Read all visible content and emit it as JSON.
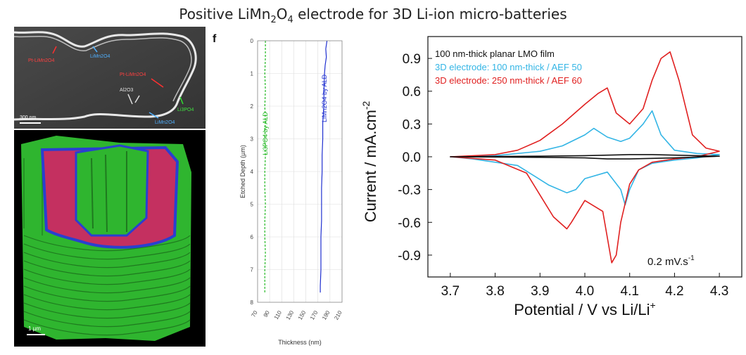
{
  "figure": {
    "title_main": "Positive LiMn",
    "title_sub1": "2",
    "title_mid": "O",
    "title_sub2": "4",
    "title_end": " electrode for 3D Li-ion micro-batteries"
  },
  "sem_image": {
    "labels": [
      "Pt-LiMn2O4",
      "LiMn2O4",
      "Pt-LiMn2O4",
      "Al2O3",
      "Li3PO4",
      "LiMn2O4"
    ],
    "scale_bar": "300 nm"
  },
  "model_image": {
    "scale_bar": "1 µm",
    "colors": {
      "outer": "#2fb52f",
      "inner": "#c43060",
      "edge": "#2a3fd0"
    }
  },
  "chart_data": [
    {
      "type": "line",
      "panel_label": "f",
      "xlabel": "Thickness (nm)",
      "ylabel": "Etched Depth (µm)",
      "xlim": [
        70,
        210
      ],
      "ylim": [
        8,
        0
      ],
      "x_ticks": [
        "70",
        "90",
        "110",
        "130",
        "150",
        "170",
        "190",
        "210"
      ],
      "y_ticks": [
        "0",
        "1",
        "2",
        "3",
        "4",
        "5",
        "6",
        "7",
        "8"
      ],
      "grid": true,
      "series": [
        {
          "name": "Li3PO4 by ALD",
          "color": "#22b822",
          "depth": [
            0,
            0.5,
            1,
            1.5,
            2,
            2.5,
            3,
            3.5,
            4,
            4.5,
            5,
            5.5,
            6,
            6.5,
            7,
            7.5,
            7.7
          ],
          "thickness": [
            83,
            83,
            82,
            83,
            82,
            83,
            82,
            83,
            82,
            82,
            83,
            82,
            82,
            83,
            82,
            82,
            82
          ]
        },
        {
          "name": "LiMn2O4 by ALD",
          "color": "#2030d0",
          "depth": [
            0,
            0.25,
            0.5,
            0.75,
            1,
            1.5,
            2,
            2.5,
            3,
            3.5,
            4,
            4.5,
            5,
            5.5,
            6,
            6.5,
            7,
            7.5,
            7.7
          ],
          "thickness": [
            185,
            183,
            184,
            182,
            181,
            180,
            180,
            178,
            178,
            177,
            177,
            176,
            176,
            176,
            175,
            175,
            175,
            174,
            174
          ]
        }
      ]
    },
    {
      "type": "line",
      "xlabel": "Potential / V vs Li/Li+",
      "ylabel": "Current / mA.cm-2",
      "xlim": [
        3.65,
        4.35
      ],
      "ylim": [
        -1.1,
        1.1
      ],
      "x_ticks": [
        "3.7",
        "3.8",
        "3.9",
        "4.0",
        "4.1",
        "4.2",
        "4.3"
      ],
      "y_ticks": [
        "0.9",
        "0.6",
        "0.3",
        "0.0",
        "-0.3",
        "-0.6",
        "-0.9"
      ],
      "annotation": "0.2 mV.s-1",
      "legend_position": "top-left",
      "series": [
        {
          "name": "100 nm-thick planar LMO film",
          "color": "#111111",
          "x": [
            3.7,
            3.9,
            4.0,
            4.05,
            4.1,
            4.15,
            4.2,
            4.3,
            4.2,
            4.15,
            4.1,
            4.05,
            4.0,
            3.9,
            3.7
          ],
          "y": [
            0.0,
            0.005,
            0.01,
            0.015,
            0.02,
            0.02,
            0.015,
            0.005,
            -0.01,
            -0.015,
            -0.02,
            -0.02,
            -0.01,
            -0.005,
            0.0
          ]
        },
        {
          "name": "3D electrode: 100 nm-thick / AEF 50",
          "color": "#33b5e5",
          "x": [
            3.7,
            3.8,
            3.9,
            3.95,
            4.0,
            4.02,
            4.05,
            4.08,
            4.1,
            4.13,
            4.15,
            4.17,
            4.2,
            4.25,
            4.3,
            4.25,
            4.2,
            4.15,
            4.12,
            4.1,
            4.09,
            4.08,
            4.05,
            4.0,
            3.98,
            3.96,
            3.92,
            3.85,
            3.75,
            3.7
          ],
          "y": [
            0.0,
            0.01,
            0.05,
            0.1,
            0.2,
            0.26,
            0.18,
            0.14,
            0.17,
            0.3,
            0.42,
            0.2,
            0.06,
            0.03,
            0.02,
            -0.01,
            -0.03,
            -0.06,
            -0.12,
            -0.3,
            -0.44,
            -0.3,
            -0.14,
            -0.2,
            -0.3,
            -0.33,
            -0.26,
            -0.08,
            -0.02,
            0.0
          ]
        },
        {
          "name": "3D electrode: 250 nm-thick / AEF 60",
          "color": "#e02020",
          "x": [
            3.7,
            3.8,
            3.85,
            3.9,
            3.95,
            4.0,
            4.03,
            4.05,
            4.07,
            4.1,
            4.13,
            4.15,
            4.17,
            4.19,
            4.21,
            4.24,
            4.27,
            4.3,
            4.25,
            4.2,
            4.15,
            4.12,
            4.1,
            4.08,
            4.07,
            4.06,
            4.04,
            4.0,
            3.97,
            3.96,
            3.93,
            3.9,
            3.87,
            3.8,
            3.7
          ],
          "y": [
            0.0,
            0.02,
            0.06,
            0.15,
            0.3,
            0.48,
            0.58,
            0.63,
            0.4,
            0.3,
            0.44,
            0.7,
            0.9,
            0.96,
            0.7,
            0.2,
            0.08,
            0.05,
            0.0,
            -0.02,
            -0.05,
            -0.12,
            -0.25,
            -0.6,
            -0.9,
            -0.97,
            -0.5,
            -0.4,
            -0.6,
            -0.66,
            -0.55,
            -0.35,
            -0.15,
            -0.03,
            0.0
          ]
        }
      ]
    }
  ]
}
